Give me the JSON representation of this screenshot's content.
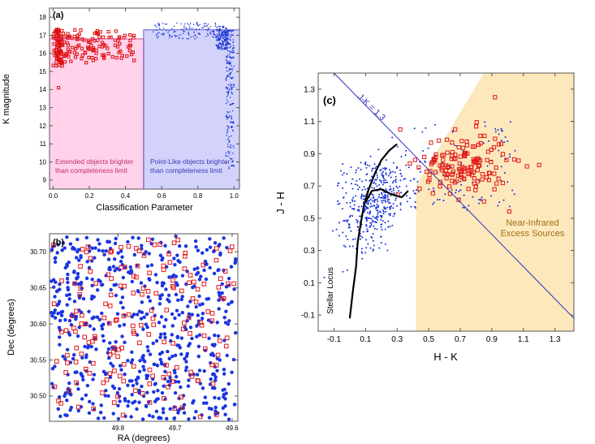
{
  "chart_data": [
    {
      "panel": "(a)",
      "type": "scatter",
      "xlabel": "Classification Parameter",
      "ylabel": "K magnitude",
      "xlim": [
        -0.02,
        1.03
      ],
      "ylim": [
        8.5,
        18.5
      ],
      "x_ticks": [
        0.0,
        0.2,
        0.4,
        0.6,
        0.8,
        1.0
      ],
      "x_tick_labels": [
        "0.0",
        "0.2",
        "0.4",
        "0.6",
        "0.8",
        "1.0"
      ],
      "y_ticks": [
        9,
        10,
        11,
        12,
        13,
        14,
        15,
        16,
        17,
        18
      ],
      "y_tick_labels": [
        "9",
        "10",
        "11",
        "12",
        "13",
        "14",
        "15",
        "16",
        "17",
        "18"
      ],
      "regions": [
        {
          "name": "Extended objects brighter than completeness limit",
          "x_range": [
            -0.02,
            0.5
          ],
          "y_limit": 16.8,
          "color": "#ffd2ea",
          "line_color": "#e0407a"
        },
        {
          "name": "Point-Like objects brighter than completeness limit",
          "x_range": [
            0.5,
            1.03
          ],
          "y_limit": 17.3,
          "color": "#d2d2fb",
          "line_color": "#5a5ad6"
        }
      ],
      "annotations": [
        {
          "lines": [
            "Extended objects brighter",
            "than completeness limit"
          ],
          "color": "#c0306a"
        },
        {
          "lines": [
            "Point-Like objects brighter",
            "than completeness limit"
          ],
          "color": "#3a3ab8"
        }
      ],
      "series": [
        {
          "name": "Extended objects",
          "marker": "open-square",
          "color": "#dd1010",
          "count": 190,
          "x_range": [
            0.0,
            0.45
          ],
          "y_range": [
            14.1,
            17.5
          ]
        },
        {
          "name": "Point-like objects",
          "marker": "dot",
          "color": "#1030d0",
          "count": 560,
          "x_range": [
            0.55,
            1.0
          ],
          "y_range": [
            9.5,
            17.7
          ]
        }
      ]
    },
    {
      "panel": "(b)",
      "type": "scatter",
      "xlabel": "RA (degrees)",
      "ylabel": "Dec (degrees)",
      "xlim": [
        49.92,
        49.59
      ],
      "ylim": [
        30.465,
        30.725
      ],
      "x_ticks": [
        49.8,
        49.7,
        49.6
      ],
      "x_tick_labels": [
        "49.8",
        "49.7",
        "49.6"
      ],
      "y_ticks": [
        30.5,
        30.55,
        30.6,
        30.65,
        30.7
      ],
      "y_tick_labels": [
        "30.50",
        "30.55",
        "30.60",
        "30.65",
        "30.70"
      ],
      "series": [
        {
          "name": "Point-like objects",
          "marker": "dot",
          "color": "#1a35e0",
          "count": 640
        },
        {
          "name": "Extended objects",
          "marker": "open-square",
          "color": "#e01818",
          "count": 180
        }
      ]
    },
    {
      "panel": "(c)",
      "type": "scatter",
      "xlabel": "H - K",
      "ylabel": "J - H",
      "xlim": [
        -0.2,
        1.42
      ],
      "ylim": [
        -0.2,
        1.4
      ],
      "x_ticks": [
        -0.1,
        0.1,
        0.3,
        0.5,
        0.7,
        0.9,
        1.1,
        1.3
      ],
      "x_tick_labels": [
        "-0.1",
        "0.1",
        "0.3",
        "0.5",
        "0.7",
        "0.9",
        "1.1",
        "1.3"
      ],
      "y_ticks": [
        -0.1,
        0.1,
        0.3,
        0.5,
        0.7,
        0.9,
        1.1,
        1.3
      ],
      "y_tick_labels": [
        "-0.1",
        "0.1",
        "0.3",
        "0.5",
        "0.7",
        "0.9",
        "1.1",
        "1.3"
      ],
      "reference_line": {
        "label": "J-K = 1.3",
        "points": [
          [
            -0.1,
            1.4
          ],
          [
            1.42,
            -0.12
          ]
        ],
        "color": "#3030c0"
      },
      "excess_region": {
        "label_lines": [
          "Near-Infrared",
          "Excess Sources"
        ],
        "color": "#fde8bb",
        "label_color": "#a0701a",
        "vertices": [
          [
            0.42,
            -0.2
          ],
          [
            1.42,
            -0.2
          ],
          [
            1.42,
            1.4
          ],
          [
            0.85,
            1.4
          ],
          [
            0.42,
            0.7
          ]
        ]
      },
      "stellar_locus": {
        "label": "Stellar Locus",
        "color": "#000000",
        "paths": [
          [
            [
              0.0,
              -0.12
            ],
            [
              0.02,
              0.05
            ],
            [
              0.04,
              0.2
            ],
            [
              0.05,
              0.35
            ],
            [
              0.07,
              0.47
            ],
            [
              0.09,
              0.58
            ],
            [
              0.12,
              0.68
            ],
            [
              0.16,
              0.78
            ],
            [
              0.2,
              0.86
            ],
            [
              0.25,
              0.92
            ],
            [
              0.3,
              0.96
            ]
          ],
          [
            [
              0.1,
              0.6
            ],
            [
              0.14,
              0.67
            ],
            [
              0.2,
              0.68
            ],
            [
              0.26,
              0.65
            ],
            [
              0.33,
              0.63
            ],
            [
              0.37,
              0.67
            ]
          ]
        ]
      },
      "series": [
        {
          "name": "Point-like objects",
          "marker": "dot",
          "color": "#1530d8",
          "count": 540,
          "center": [
            0.16,
            0.6
          ]
        },
        {
          "name": "Extended objects",
          "marker": "open-square",
          "color": "#e01818",
          "count": 150,
          "center": [
            0.72,
            0.83
          ]
        }
      ]
    }
  ]
}
